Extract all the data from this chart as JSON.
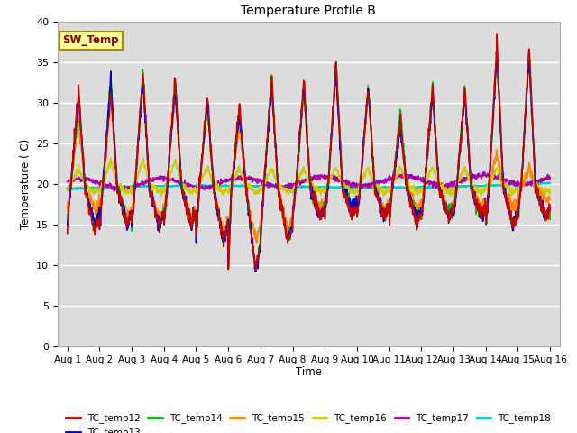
{
  "title": "Temperature Profile B",
  "xlabel": "Time",
  "ylabel": "Temperature ( C)",
  "ylim": [
    0,
    40
  ],
  "yticks": [
    0,
    5,
    10,
    15,
    20,
    25,
    30,
    35,
    40
  ],
  "x_labels": [
    "Aug 1",
    "Aug 2",
    "Aug 3",
    "Aug 4",
    "Aug 5",
    "Aug 6",
    "Aug 7",
    "Aug 8",
    "Aug 9",
    "Aug 10",
    "Aug 11",
    "Aug 12",
    "Aug 13",
    "Aug 14",
    "Aug 15",
    "Aug 16"
  ],
  "series": {
    "TC_temp12": {
      "color": "#cc0000"
    },
    "TC_temp13": {
      "color": "#0000cc"
    },
    "TC_temp14": {
      "color": "#00bb00"
    },
    "TC_temp15": {
      "color": "#ff8800"
    },
    "TC_temp16": {
      "color": "#cccc00"
    },
    "TC_temp17": {
      "color": "#aa00aa"
    },
    "TC_temp18": {
      "color": "#00cccc"
    }
  },
  "legend_box": {
    "label": "SW_Temp",
    "facecolor": "#ffff99",
    "edgecolor": "#aa8800"
  },
  "axes_bg": "#dcdcdc",
  "grid_color": "white",
  "n_points": 1500,
  "days": 15
}
